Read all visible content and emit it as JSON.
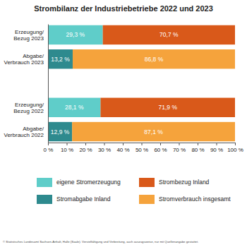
{
  "chart_data": {
    "type": "bar",
    "orientation": "horizontal",
    "stacked": true,
    "data_labels": true,
    "legend": "bottom",
    "title": "Strombilanz der Industriebetriebe 2022 und 2023",
    "source": "© Statistisches Landesamt Sachsen-Anhalt, Halle (Saale). Vervielfältigung und Verbreitung, auch auszugsweise, nur mit Quellenangabe gestattet.",
    "categories": [
      "Erzeugung/ Bezug 2023",
      "Abgabe/ Verbrauch 2023",
      null,
      "Erzeugung/ Bezug 2022",
      "Abgabe/ Verbrauch 2022"
    ],
    "series": [
      {
        "name": "eigene Stromerzeugung",
        "color": "#5fcdc9",
        "values": [
          29.3,
          null,
          null,
          28.1,
          null
        ],
        "value_labels": [
          "29,3 %",
          null,
          null,
          "28,1 %",
          null
        ]
      },
      {
        "name": "Strombezug Inland",
        "color": "#d9591a",
        "values": [
          70.7,
          null,
          null,
          71.9,
          null
        ],
        "value_labels": [
          "70,7 %",
          null,
          null,
          "71,9 %",
          null
        ]
      },
      {
        "name": "Stromabgabe Inland",
        "color": "#2e8a8e",
        "values": [
          null,
          13.2,
          null,
          null,
          12.9
        ],
        "value_labels": [
          null,
          "13,2 %",
          null,
          null,
          "12,9 %"
        ]
      },
      {
        "name": "Stromverbrauch insgesamt",
        "color": "#f5a33c",
        "values": [
          null,
          86.8,
          null,
          null,
          87.1
        ],
        "value_labels": [
          null,
          "86,8 %",
          null,
          null,
          "87,1 %"
        ]
      }
    ],
    "xlim": [
      0,
      100
    ],
    "xticks": [
      {
        "value": 0,
        "label": "0 %"
      },
      {
        "value": 10,
        "label": "10 %"
      },
      {
        "value": 20,
        "label": "20 %"
      },
      {
        "value": 30,
        "label": "30 %"
      },
      {
        "value": 40,
        "label": "40 %"
      },
      {
        "value": 50,
        "label": "50 %"
      },
      {
        "value": 60,
        "label": "60 %"
      },
      {
        "value": 70,
        "label": "70 %"
      },
      {
        "value": 80,
        "label": "80 %"
      },
      {
        "value": 90,
        "label": "90 %"
      },
      {
        "value": 100,
        "label": "100 %"
      }
    ]
  }
}
